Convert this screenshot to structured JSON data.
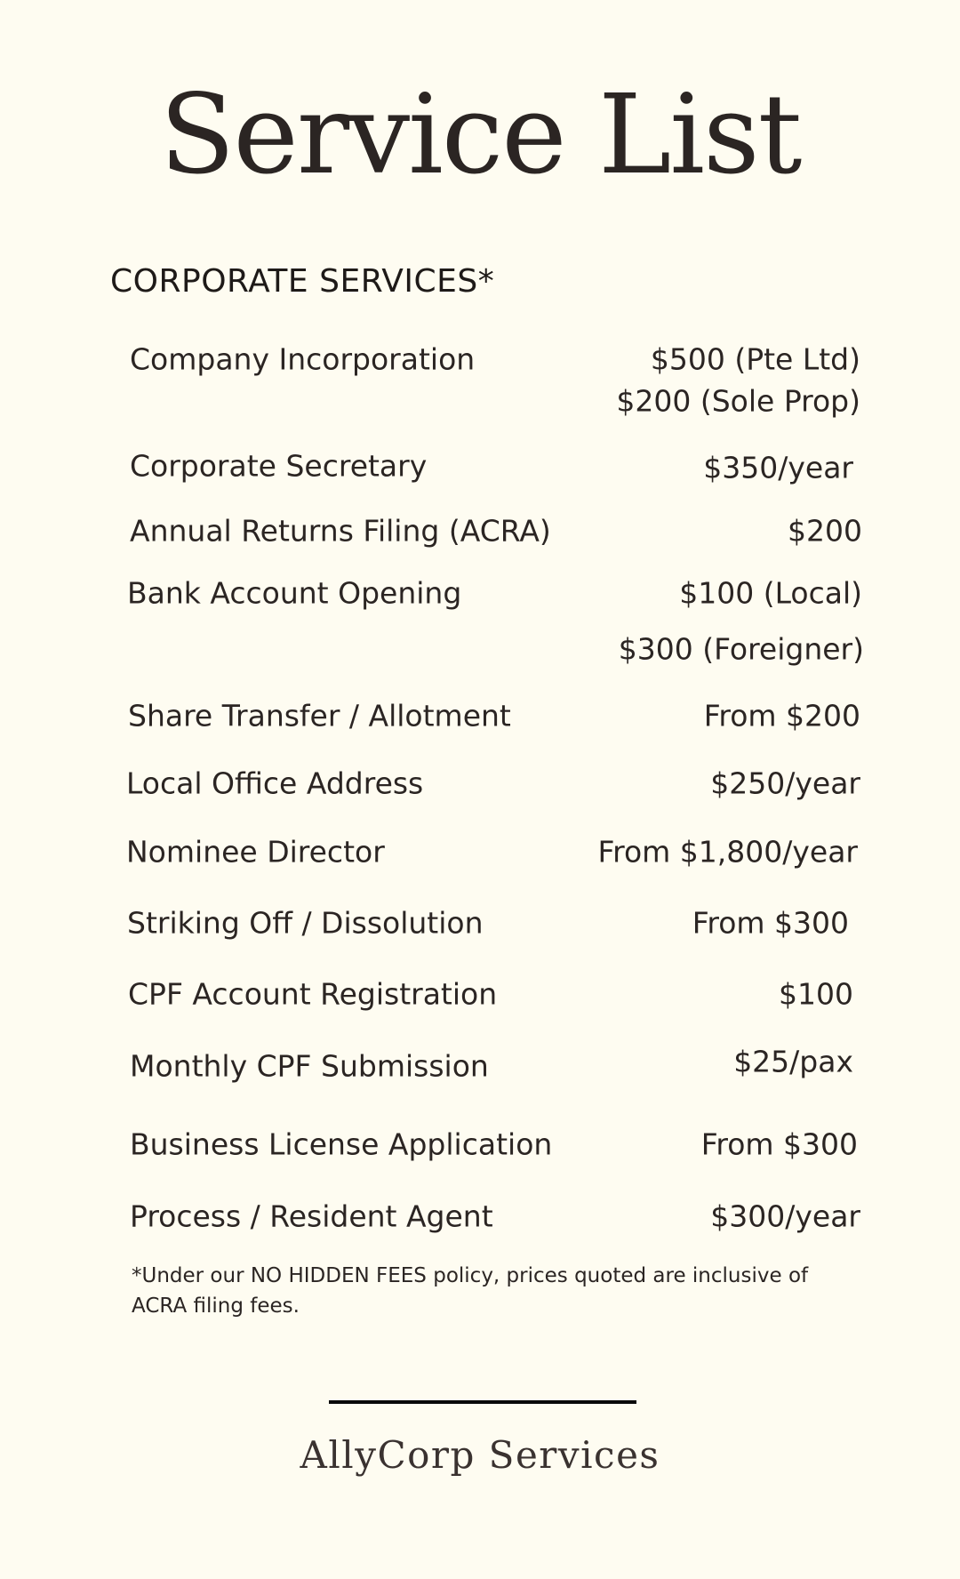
{
  "title": "Service List",
  "section": "CORPORATE SERVICES*",
  "services": [
    {
      "name": "Company Incorporation",
      "prices": [
        "$500 (Pte Ltd)",
        "$200 (Sole Prop)"
      ]
    },
    {
      "name": "Corporate Secretary",
      "prices": [
        "$350/year"
      ]
    },
    {
      "name": "Annual Returns Filing (ACRA)",
      "prices": [
        "$200"
      ]
    },
    {
      "name": "Bank Account Opening",
      "prices": [
        "$100 (Local)",
        "$300 (Foreigner)"
      ]
    },
    {
      "name": "Share Transfer / Allotment",
      "prices": [
        "From $200"
      ]
    },
    {
      "name": "Local Office Address",
      "prices": [
        "$250/year"
      ]
    },
    {
      "name": "Nominee Director",
      "prices": [
        "From $1,800/year"
      ]
    },
    {
      "name": "Striking Off / Dissolution",
      "prices": [
        "From $300"
      ]
    },
    {
      "name": "CPF Account Registration",
      "prices": [
        "$100"
      ]
    },
    {
      "name": "Monthly CPF Submission",
      "prices": [
        "$25/pax"
      ]
    },
    {
      "name": "Business License Application",
      "prices": [
        "From $300"
      ]
    },
    {
      "name": "Process / Resident Agent",
      "prices": [
        "$300/year"
      ]
    }
  ],
  "footnote": "*Under our NO HIDDEN FEES policy, prices quoted are inclusive of ACRA filing fees.",
  "brand": "AllyCorp Services",
  "colors": {
    "background": "#fefcf1",
    "text": "#2b2523"
  }
}
